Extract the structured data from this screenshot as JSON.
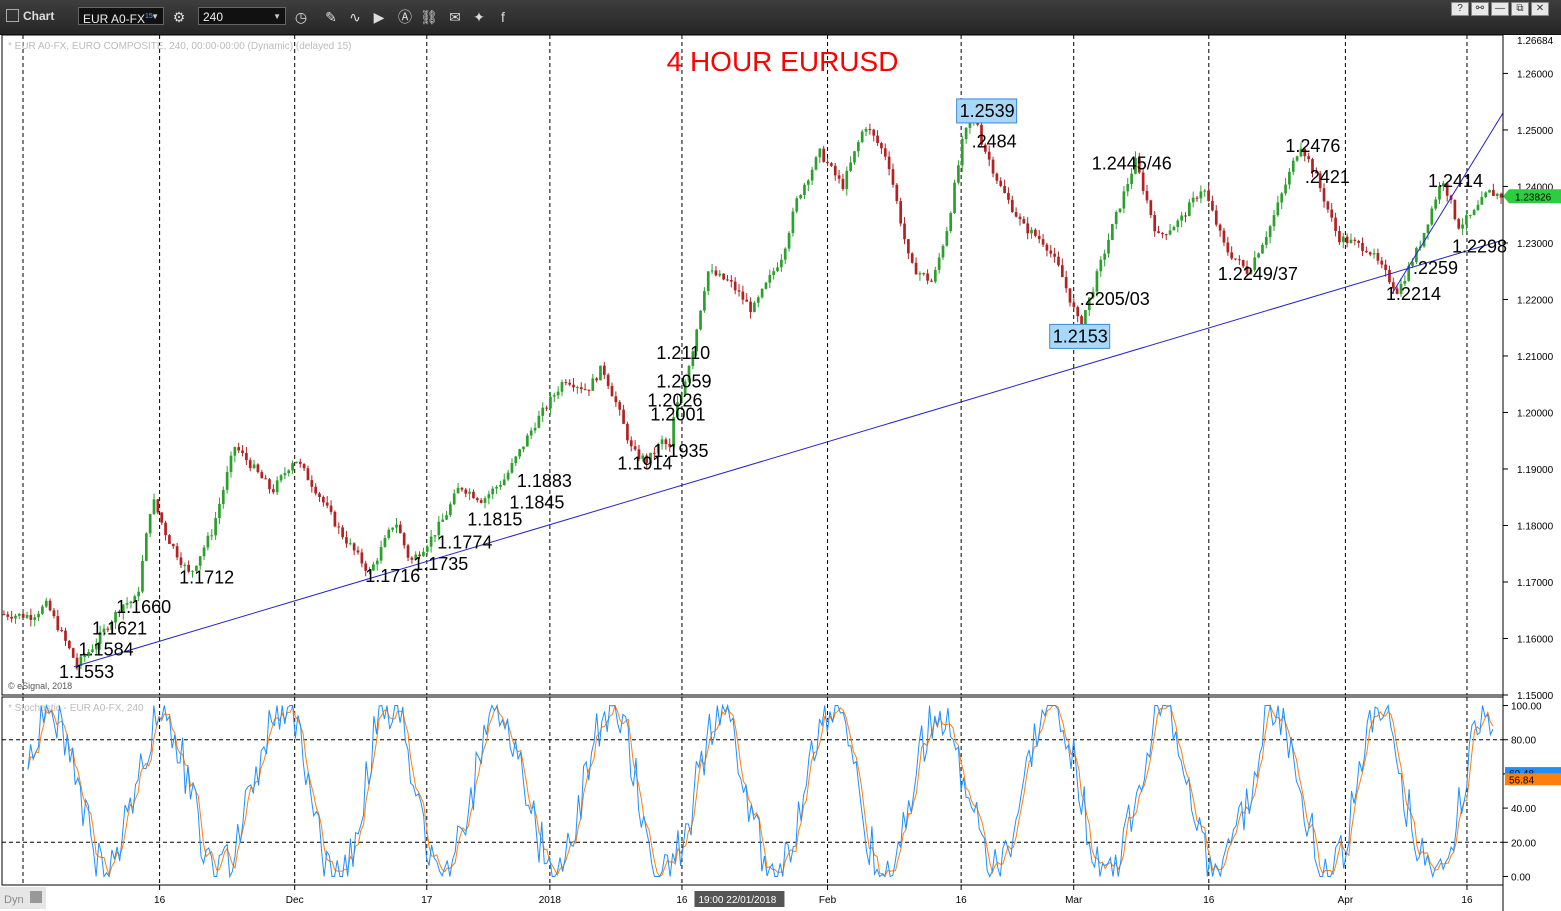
{
  "toolbar": {
    "title": "Chart",
    "symbol": "EUR A0-FX",
    "symbol_sup": "15",
    "interval": "240",
    "icons": [
      "settings-icon",
      "clock-icon",
      "pencil-icon",
      "curve-icon",
      "play-icon",
      "a-icon",
      "link-icon",
      "comment-icon",
      "twitter-icon",
      "facebook-icon"
    ],
    "window_buttons": [
      "?",
      "—",
      "⧉",
      "✕"
    ]
  },
  "chart_data": [
    {
      "type": "line",
      "subtype": "candlestick",
      "title": "4 HOUR EURUSD",
      "title_color": "#ff0000",
      "header": "* EUR A0-FX, EURO COMPOSITE, 240, 00:00-00:00 (Dynamic) (delayed 15)",
      "copyright": "© eSignal, 2018",
      "ylim": [
        1.15,
        1.2668
      ],
      "yticks": [
        "1.15000",
        "1.16000",
        "1.17000",
        "1.18000",
        "1.19000",
        "1.20000",
        "1.21000",
        "1.22000",
        "1.23000",
        "1.24000",
        "1.25000",
        "1.26000"
      ],
      "y_top_label": "1.26684",
      "last_price": "1.23826",
      "last_price_color": "#2ecc40",
      "x_ticks": [
        {
          "label": "16",
          "x": 0.105
        },
        {
          "label": "Dec",
          "x": 0.195
        },
        {
          "label": "17",
          "x": 0.283
        },
        {
          "label": "2018",
          "x": 0.365
        },
        {
          "label": "16",
          "x": 0.453
        },
        {
          "label": "Feb",
          "x": 0.55
        },
        {
          "label": "16",
          "x": 0.639
        },
        {
          "label": "Mar",
          "x": 0.714
        },
        {
          "label": "16",
          "x": 0.804
        },
        {
          "label": "Apr",
          "x": 0.895
        },
        {
          "label": "16",
          "x": 0.976
        }
      ],
      "x_cursor_label": "19:00 22/01/2018",
      "bull_color": "#2ca02c",
      "bear_color": "#b22222",
      "path": [
        [
          0,
          1.1643
        ],
        [
          0.02,
          1.164
        ],
        [
          0.03,
          1.166
        ],
        [
          0.05,
          1.1553
        ],
        [
          0.06,
          1.1584
        ],
        [
          0.07,
          1.1621
        ],
        [
          0.08,
          1.166
        ],
        [
          0.09,
          1.167
        ],
        [
          0.1,
          1.185
        ],
        [
          0.11,
          1.178
        ],
        [
          0.125,
          1.1712
        ],
        [
          0.14,
          1.179
        ],
        [
          0.155,
          1.194
        ],
        [
          0.165,
          1.191
        ],
        [
          0.18,
          1.186
        ],
        [
          0.195,
          1.192
        ],
        [
          0.21,
          1.186
        ],
        [
          0.225,
          1.179
        ],
        [
          0.245,
          1.1716
        ],
        [
          0.262,
          1.181
        ],
        [
          0.272,
          1.1735
        ],
        [
          0.285,
          1.1774
        ],
        [
          0.295,
          1.1815
        ],
        [
          0.305,
          1.187
        ],
        [
          0.32,
          1.1845
        ],
        [
          0.335,
          1.1883
        ],
        [
          0.355,
          1.198
        ],
        [
          0.375,
          1.206
        ],
        [
          0.39,
          1.204
        ],
        [
          0.4,
          1.208
        ],
        [
          0.41,
          1.201
        ],
        [
          0.42,
          1.193
        ],
        [
          0.43,
          1.1914
        ],
        [
          0.44,
          1.195
        ],
        [
          0.445,
          1.1935
        ],
        [
          0.448,
          1.2001
        ],
        [
          0.452,
          1.2026
        ],
        [
          0.455,
          1.2059
        ],
        [
          0.46,
          1.211
        ],
        [
          0.47,
          1.225
        ],
        [
          0.485,
          1.223
        ],
        [
          0.5,
          1.218
        ],
        [
          0.52,
          1.228
        ],
        [
          0.53,
          1.238
        ],
        [
          0.545,
          1.246
        ],
        [
          0.56,
          1.24
        ],
        [
          0.575,
          1.251
        ],
        [
          0.59,
          1.245
        ],
        [
          0.605,
          1.226
        ],
        [
          0.62,
          1.223
        ],
        [
          0.63,
          1.233
        ],
        [
          0.64,
          1.248
        ],
        [
          0.648,
          1.2539
        ],
        [
          0.652,
          1.2484
        ],
        [
          0.665,
          1.24
        ],
        [
          0.68,
          1.233
        ],
        [
          0.695,
          1.23
        ],
        [
          0.705,
          1.225
        ],
        [
          0.718,
          1.2153
        ],
        [
          0.725,
          1.2205
        ],
        [
          0.74,
          1.233
        ],
        [
          0.755,
          1.2445
        ],
        [
          0.77,
          1.231
        ],
        [
          0.785,
          1.234
        ],
        [
          0.8,
          1.24
        ],
        [
          0.815,
          1.229
        ],
        [
          0.83,
          1.2249
        ],
        [
          0.845,
          1.233
        ],
        [
          0.865,
          1.2476
        ],
        [
          0.875,
          1.2421
        ],
        [
          0.89,
          1.231
        ],
        [
          0.91,
          1.229
        ],
        [
          0.93,
          1.2214
        ],
        [
          0.945,
          1.23
        ],
        [
          0.955,
          1.238
        ],
        [
          0.96,
          1.2414
        ],
        [
          0.97,
          1.233
        ],
        [
          0.98,
          1.235
        ],
        [
          0.99,
          1.239
        ],
        [
          1.0,
          1.2383
        ]
      ],
      "annotations": [
        {
          "text": "1.1553",
          "x": 0.038,
          "y": 1.153
        },
        {
          "text": "1.1584",
          "x": 0.051,
          "y": 1.157
        },
        {
          "text": "1.1621",
          "x": 0.06,
          "y": 1.1607
        },
        {
          "text": "1.1660",
          "x": 0.076,
          "y": 1.1645
        },
        {
          "text": "1.1712",
          "x": 0.118,
          "y": 1.1697
        },
        {
          "text": "1.1716",
          "x": 0.242,
          "y": 1.17
        },
        {
          "text": "1.1735",
          "x": 0.274,
          "y": 1.1721
        },
        {
          "text": "1.1774",
          "x": 0.29,
          "y": 1.1759
        },
        {
          "text": "1.1815",
          "x": 0.31,
          "y": 1.18
        },
        {
          "text": "1.1845",
          "x": 0.338,
          "y": 1.183
        },
        {
          "text": "1.1883",
          "x": 0.343,
          "y": 1.1868
        },
        {
          "text": "1.1914",
          "x": 0.41,
          "y": 1.1899
        },
        {
          "text": "1.1935",
          "x": 0.434,
          "y": 1.1921
        },
        {
          "text": "1.2001",
          "x": 0.432,
          "y": 1.1986
        },
        {
          "text": "1.2026",
          "x": 0.43,
          "y": 1.2011
        },
        {
          "text": "1.2059",
          "x": 0.436,
          "y": 1.2044
        },
        {
          "text": "1.2110",
          "x": 0.436,
          "y": 1.2095
        },
        {
          "text": ".2484",
          "x": 0.646,
          "y": 1.2469
        },
        {
          "text": ".2205/03",
          "x": 0.718,
          "y": 1.219
        },
        {
          "text": "1.2445/46",
          "x": 0.726,
          "y": 1.243
        },
        {
          "text": "1.2249/37",
          "x": 0.81,
          "y": 1.2234
        },
        {
          "text": "1.2476",
          "x": 0.855,
          "y": 1.2461
        },
        {
          "text": ".2421",
          "x": 0.868,
          "y": 1.2406
        },
        {
          "text": "1.2214",
          "x": 0.922,
          "y": 1.2199
        },
        {
          "text": ".2259",
          "x": 0.94,
          "y": 1.2245
        },
        {
          "text": "1.2414",
          "x": 0.95,
          "y": 1.2399
        },
        {
          "text": "1.2298",
          "x": 0.966,
          "y": 1.2283
        }
      ],
      "highlights": [
        {
          "text": "1.2539",
          "x": 0.638,
          "y": 1.2523
        },
        {
          "text": "1.2153",
          "x": 0.7,
          "y": 1.2124
        }
      ],
      "trendlines": [
        {
          "x1": 0.048,
          "y1": 1.155,
          "x2": 1.0,
          "y2": 1.2305,
          "color": "#2222cc"
        },
        {
          "x1": 0.926,
          "y1": 1.221,
          "x2": 1.0,
          "y2": 1.253,
          "color": "#2222cc"
        }
      ],
      "vlines": [
        0.014,
        0.105,
        0.195,
        0.283,
        0.365,
        0.453,
        0.55,
        0.639,
        0.714,
        0.804,
        0.895,
        0.976
      ]
    },
    {
      "type": "line",
      "title": "* Stochastic - EUR A0-FX, 240",
      "ylim": [
        -5,
        105
      ],
      "yticks": [
        "0.00",
        "20.00",
        "40.00",
        "60.00",
        "80.00",
        "100.00"
      ],
      "ref_lines": [
        20,
        80
      ],
      "value_labels": [
        {
          "text": "60.48",
          "color": "#1f8fff",
          "y": 60.48
        },
        {
          "text": "56.84",
          "color": "#ff7f0e",
          "y": 56.84
        }
      ],
      "series": [
        {
          "color": "#1f8fff"
        },
        {
          "color": "#ff7f0e"
        }
      ]
    }
  ],
  "footer": {
    "dyn_label": "Dyn"
  }
}
